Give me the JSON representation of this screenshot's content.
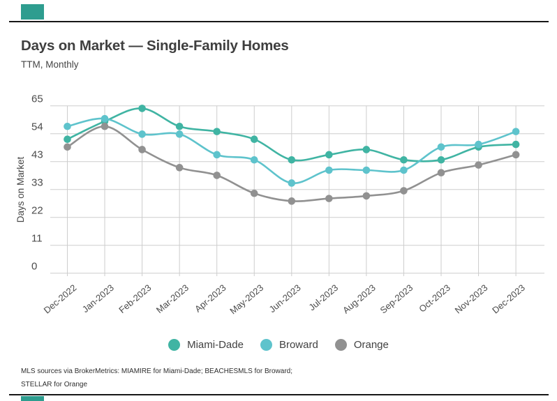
{
  "chart_data": {
    "type": "line",
    "title": "Days on Market — Single-Family Homes",
    "subtitle": "TTM, Monthly",
    "ylabel": "Days on Market",
    "xlabel": "",
    "ylim": [
      0,
      65
    ],
    "ytick_labels": [
      "0",
      "11",
      "22",
      "33",
      "43",
      "54",
      "65"
    ],
    "grid": true,
    "legend_position": "bottom",
    "categories": [
      "Dec-2022",
      "Jan-2023",
      "Feb-2023",
      "Mar-2023",
      "Apr-2023",
      "May-2023",
      "Jun-2023",
      "Jul-2023",
      "Aug-2023",
      "Sep-2023",
      "Oct-2023",
      "Nov-2023",
      "Dec-2023"
    ],
    "series": [
      {
        "name": "Miami-Dade",
        "color": "#40b4a3",
        "values": [
          52,
          59,
          64,
          57,
          55,
          52,
          44,
          46,
          48,
          44,
          44,
          49,
          50
        ]
      },
      {
        "name": "Broward",
        "color": "#5ec3cc",
        "values": [
          57,
          60,
          54,
          54,
          46,
          44,
          35,
          40,
          40,
          40,
          49,
          50,
          55
        ]
      },
      {
        "name": "Orange",
        "color": "#919191",
        "values": [
          49,
          57,
          48,
          41,
          38,
          31,
          28,
          29,
          30,
          32,
          39,
          42,
          46
        ]
      }
    ],
    "gridline_color": "#cdcdcd",
    "axis_text_color": "#4c4c4c"
  },
  "brand": {
    "accent_color": "#2e9d8f"
  },
  "footer": {
    "line1": "MLS sources via BrokerMetrics: MIAMIRE for Miami-Dade; BEACHESMLS for Broward;",
    "line2": "STELLAR for Orange"
  }
}
